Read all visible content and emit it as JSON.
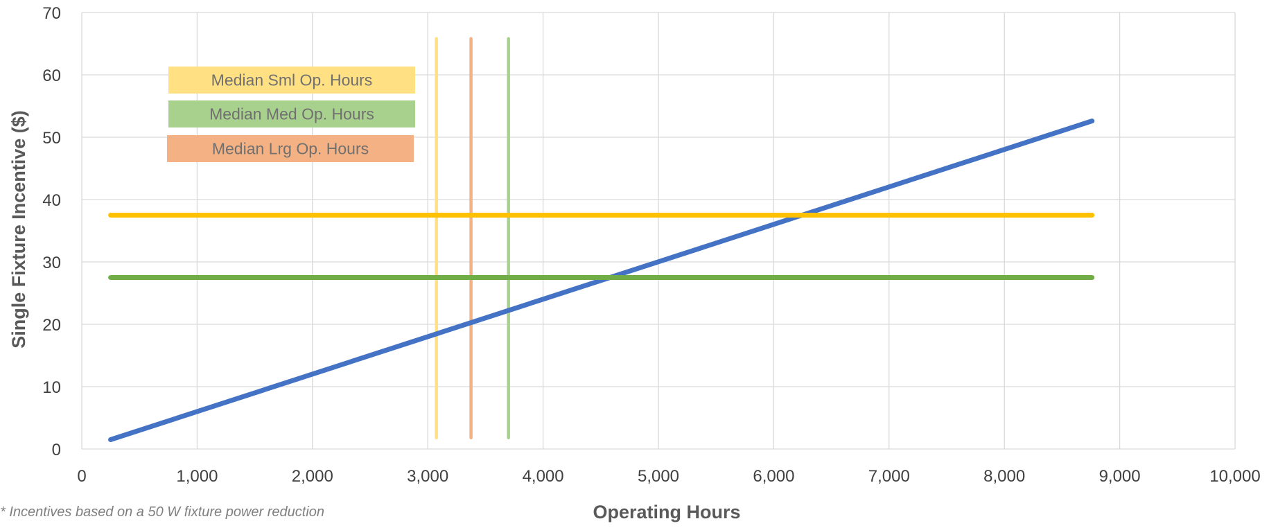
{
  "chart_data": {
    "type": "line",
    "title": "",
    "xlabel": "Operating Hours",
    "ylabel": "Single Fixture Incentive ($)",
    "xlim": [
      0,
      10000
    ],
    "ylim": [
      0,
      70
    ],
    "x_ticks": [
      "0",
      "1,000",
      "2,000",
      "3,000",
      "4,000",
      "5,000",
      "6,000",
      "7,000",
      "8,000",
      "9,000",
      "10,000"
    ],
    "x_tick_values": [
      0,
      1000,
      2000,
      3000,
      4000,
      5000,
      6000,
      7000,
      8000,
      9000,
      10000
    ],
    "y_ticks": [
      "0",
      "10",
      "20",
      "30",
      "40",
      "50",
      "60",
      "70"
    ],
    "y_tick_values": [
      0,
      10,
      20,
      30,
      40,
      50,
      60,
      70
    ],
    "grid": true,
    "series": [
      {
        "color": "#4472C4",
        "x": [
          250,
          8760
        ],
        "y": [
          1.5,
          52.6
        ]
      },
      {
        "color": "#FFC000",
        "x": [
          250,
          8760
        ],
        "y": [
          37.5,
          37.5
        ]
      },
      {
        "color": "#70AD47",
        "x": [
          250,
          8760
        ],
        "y": [
          27.5,
          27.5
        ]
      }
    ],
    "vertical_lines": [
      {
        "name": "Median Sml Op. Hours",
        "x": 3075,
        "y_range": [
          1.8,
          65.8
        ],
        "color": "#FFE083"
      },
      {
        "name": "Median Lrg Op. Hours",
        "x": 3375,
        "y_range": [
          1.8,
          65.8
        ],
        "color": "#F4B183"
      },
      {
        "name": "Median Med Op. Hours",
        "x": 3700,
        "y_range": [
          1.8,
          65.8
        ],
        "color": "#A9D18E"
      }
    ],
    "annotations": [
      {
        "text": "Median Sml Op. Hours",
        "color": "#FFE083"
      },
      {
        "text": "Median Med Op. Hours",
        "color": "#A9D18E"
      },
      {
        "text": "Median Lrg Op. Hours",
        "color": "#F4B183"
      }
    ],
    "footnote": "* Incentives based on a 50 W fixture power reduction"
  }
}
